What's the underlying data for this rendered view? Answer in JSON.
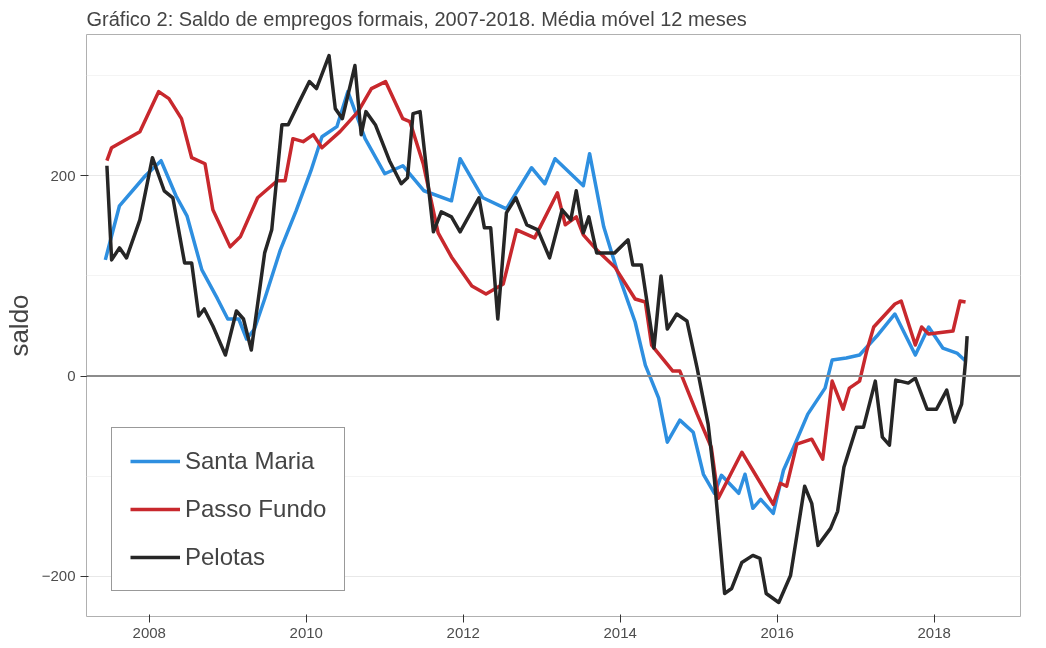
{
  "chart_data": {
    "type": "line",
    "title": "Gráfico 2: Saldo de empregos formais, 2007-2018. Média móvel 12 meses",
    "ylabel": "saldo",
    "xlim": [
      2007.2,
      2019.1
    ],
    "ylim": [
      -240,
      341
    ],
    "xticks": [
      2008,
      2010,
      2012,
      2014,
      2016,
      2018
    ],
    "yticks": [
      -200,
      0,
      200
    ],
    "grid": true,
    "legend": "bottom left",
    "line_style": "solid",
    "marker": "none",
    "ref_lines": [
      {
        "axis": "y",
        "value": 0,
        "color": "#8c8c8c"
      }
    ],
    "series": [
      {
        "name": "Santa Maria",
        "color": "#2e8fe0",
        "x": [
          2007.44,
          2007.62,
          2007.95,
          2008.15,
          2008.34,
          2008.48,
          2008.67,
          2008.87,
          2009.0,
          2009.14,
          2009.24,
          2009.34,
          2009.47,
          2009.67,
          2009.87,
          2010.06,
          2010.2,
          2010.39,
          2010.53,
          2010.75,
          2011.0,
          2011.23,
          2011.5,
          2011.85,
          2011.96,
          2012.25,
          2012.55,
          2012.87,
          2013.04,
          2013.17,
          2013.53,
          2013.61,
          2013.79,
          2013.97,
          2014.19,
          2014.32,
          2014.49,
          2014.6,
          2014.76,
          2014.93,
          2015.06,
          2015.2,
          2015.29,
          2015.51,
          2015.59,
          2015.69,
          2015.79,
          2015.95,
          2016.08,
          2016.21,
          2016.39,
          2016.61,
          2016.7,
          2016.88,
          2017.05,
          2017.27,
          2017.5,
          2017.76,
          2017.93,
          2018.11,
          2018.29,
          2018.4
        ],
        "values": [
          116,
          170,
          200,
          215,
          180,
          160,
          106,
          77,
          57,
          57,
          37,
          47,
          77,
          126,
          165,
          205,
          239,
          249,
          284,
          237,
          202,
          210,
          185,
          175,
          217,
          178,
          167,
          208,
          192,
          217,
          190,
          222,
          149,
          103,
          54,
          11,
          -22,
          -66,
          -44,
          -56,
          -98,
          -117,
          -99,
          -117,
          -98,
          -132,
          -123,
          -137,
          -94,
          -71,
          -38,
          -12,
          16,
          18,
          21,
          40,
          62,
          21,
          49,
          28,
          23,
          15
        ]
      },
      {
        "name": "Passo Fundo",
        "color": "#c8282d",
        "x": [
          2007.46,
          2007.52,
          2007.88,
          2008.12,
          2008.25,
          2008.41,
          2008.54,
          2008.71,
          2008.81,
          2009.03,
          2009.16,
          2009.38,
          2009.63,
          2009.73,
          2009.83,
          2009.96,
          2010.09,
          2010.2,
          2010.43,
          2010.66,
          2010.83,
          2011.01,
          2011.23,
          2011.32,
          2011.49,
          2011.68,
          2011.85,
          2012.11,
          2012.29,
          2012.51,
          2012.68,
          2012.91,
          2013.2,
          2013.3,
          2013.44,
          2013.53,
          2013.7,
          2013.93,
          2014.19,
          2014.32,
          2014.4,
          2014.67,
          2014.76,
          2014.98,
          2015.16,
          2015.25,
          2015.55,
          2015.72,
          2015.95,
          2016.04,
          2016.12,
          2016.25,
          2016.44,
          2016.58,
          2016.7,
          2016.84,
          2016.92,
          2017.05,
          2017.14,
          2017.23,
          2017.5,
          2017.58,
          2017.76,
          2017.84,
          2017.93,
          2018.24,
          2018.33,
          2018.4
        ],
        "values": [
          215,
          228,
          244,
          284,
          277,
          257,
          218,
          212,
          166,
          129,
          139,
          178,
          195,
          195,
          237,
          234,
          241,
          228,
          244,
          264,
          287,
          294,
          257,
          254,
          212,
          143,
          119,
          90,
          82,
          92,
          146,
          138,
          183,
          151,
          159,
          141,
          126,
          109,
          77,
          74,
          31,
          5,
          5,
          -38,
          -71,
          -122,
          -76,
          -98,
          -128,
          -107,
          -110,
          -68,
          -63,
          -83,
          -5,
          -33,
          -12,
          -5,
          25,
          49,
          72,
          75,
          31,
          49,
          42,
          45,
          75,
          74
        ]
      },
      {
        "name": "Pelotas",
        "color": "#262626",
        "x": [
          2007.46,
          2007.52,
          2007.62,
          2007.71,
          2007.88,
          2008.04,
          2008.19,
          2008.3,
          2008.45,
          2008.54,
          2008.63,
          2008.7,
          2008.81,
          2008.97,
          2009.11,
          2009.2,
          2009.3,
          2009.47,
          2009.56,
          2009.69,
          2009.77,
          2009.9,
          2010.04,
          2010.13,
          2010.29,
          2010.37,
          2010.46,
          2010.62,
          2010.7,
          2010.76,
          2010.88,
          2011.06,
          2011.21,
          2011.29,
          2011.36,
          2011.45,
          2011.62,
          2011.72,
          2011.85,
          2011.96,
          2012.2,
          2012.27,
          2012.35,
          2012.44,
          2012.55,
          2012.67,
          2012.81,
          2012.95,
          2013.1,
          2013.26,
          2013.37,
          2013.44,
          2013.53,
          2013.6,
          2013.7,
          2013.93,
          2014.1,
          2014.16,
          2014.27,
          2014.43,
          2014.52,
          2014.6,
          2014.72,
          2014.85,
          2014.98,
          2015.12,
          2015.2,
          2015.33,
          2015.42,
          2015.55,
          2015.69,
          2015.78,
          2015.86,
          2016.02,
          2016.17,
          2016.35,
          2016.44,
          2016.52,
          2016.68,
          2016.77,
          2016.85,
          2017.01,
          2017.1,
          2017.25,
          2017.34,
          2017.43,
          2017.51,
          2017.67,
          2017.76,
          2017.91,
          2018.03,
          2018.16,
          2018.26,
          2018.35,
          2018.4,
          2018.42
        ],
        "values": [
          210,
          116,
          128,
          118,
          156,
          218,
          185,
          178,
          113,
          113,
          60,
          67,
          50,
          21,
          65,
          57,
          26,
          123,
          146,
          251,
          251,
          272,
          294,
          287,
          320,
          267,
          257,
          310,
          241,
          264,
          251,
          215,
          192,
          198,
          262,
          264,
          144,
          164,
          159,
          144,
          178,
          148,
          148,
          57,
          163,
          178,
          151,
          146,
          118,
          166,
          156,
          185,
          143,
          159,
          123,
          123,
          136,
          111,
          111,
          28,
          100,
          47,
          62,
          55,
          8,
          -48,
          -103,
          -217,
          -212,
          -186,
          -179,
          -182,
          -217,
          -226,
          -199,
          -110,
          -127,
          -169,
          -152,
          -135,
          -91,
          -51,
          -51,
          -5,
          -61,
          -69,
          -4,
          -7,
          -2,
          -33,
          -33,
          -14,
          -46,
          -28,
          15,
          40
        ]
      }
    ]
  }
}
